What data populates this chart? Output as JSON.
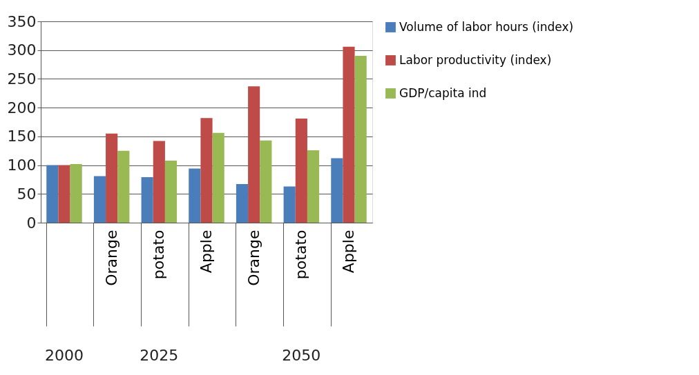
{
  "chart_data": {
    "type": "bar",
    "categories": [
      null,
      "Orange",
      "potato",
      "Apple",
      "Orange",
      "potato",
      "Apple"
    ],
    "series": [
      {
        "name": "Volume of labor hours (index)",
        "color": "#4a7ebb",
        "values": [
          100,
          81,
          79,
          94,
          67,
          63,
          112
        ]
      },
      {
        "name": "Labor productivity (index)",
        "color": "#be4b48",
        "values": [
          100,
          155,
          142,
          182,
          237,
          181,
          306
        ]
      },
      {
        "name": "GDP/capita ind",
        "color": "#98b954",
        "values": [
          102,
          125,
          108,
          156,
          143,
          126,
          290
        ]
      }
    ],
    "annotations": [
      "2000",
      "2025",
      "2050"
    ],
    "ylim": [
      0,
      350
    ],
    "yticks": [
      0,
      50,
      100,
      150,
      200,
      250,
      300,
      350
    ],
    "grid": "y",
    "legend": "right"
  }
}
